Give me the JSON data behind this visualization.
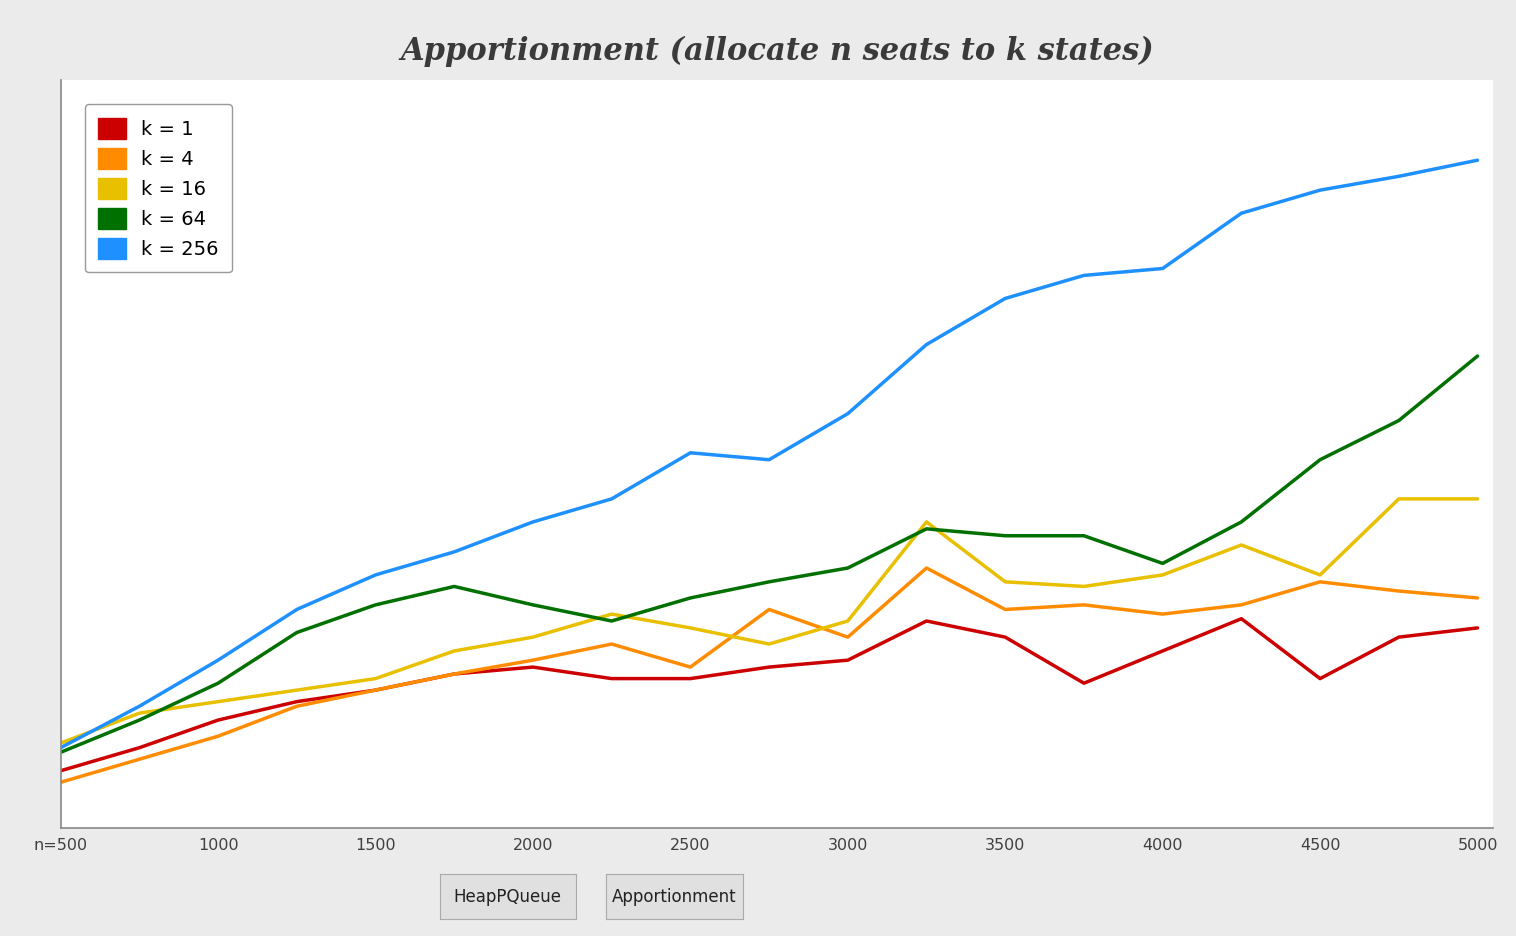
{
  "title": "Apportionment (allocate n seats to k states)",
  "x_values": [
    500,
    750,
    1000,
    1250,
    1500,
    1750,
    2000,
    2250,
    2500,
    2750,
    3000,
    3250,
    3500,
    3750,
    4000,
    4250,
    4500,
    4750,
    5000
  ],
  "series": {
    "k=1": {
      "color": "#cc0000",
      "label": "k = 1",
      "y": [
        10,
        20,
        32,
        40,
        45,
        52,
        55,
        50,
        50,
        55,
        58,
        75,
        68,
        48,
        62,
        76,
        50,
        68,
        72
      ]
    },
    "k=4": {
      "color": "#ff8c00",
      "label": "k = 4",
      "y": [
        5,
        15,
        25,
        38,
        45,
        52,
        58,
        65,
        55,
        80,
        68,
        98,
        80,
        82,
        78,
        82,
        92,
        88,
        85
      ]
    },
    "k=16": {
      "color": "#e8c000",
      "label": "k = 16",
      "y": [
        22,
        35,
        40,
        45,
        50,
        62,
        68,
        78,
        72,
        65,
        75,
        118,
        92,
        90,
        95,
        108,
        95,
        128,
        128
      ]
    },
    "k=64": {
      "color": "#007000",
      "label": "k = 64",
      "y": [
        18,
        32,
        48,
        70,
        82,
        90,
        82,
        75,
        85,
        92,
        98,
        115,
        112,
        112,
        100,
        118,
        145,
        162,
        190
      ]
    },
    "k=256": {
      "color": "#1e90ff",
      "label": "k = 256",
      "y": [
        20,
        38,
        58,
        80,
        95,
        105,
        118,
        128,
        148,
        145,
        165,
        195,
        215,
        225,
        228,
        252,
        262,
        268,
        275
      ]
    }
  },
  "tab_buttons": [
    "HeapPQueue",
    "Apportionment"
  ],
  "active_tab": "Apportionment",
  "background_color": "#ebebeb",
  "plot_bg": "#ffffff",
  "x_tick_labels": [
    "n=500",
    "1000",
    "1500",
    "2000",
    "2500",
    "3000",
    "3500",
    "4000",
    "4500",
    "5000"
  ],
  "x_tick_positions": [
    500,
    1000,
    1500,
    2000,
    2500,
    3000,
    3500,
    4000,
    4500,
    5000
  ],
  "xlim_left": 500,
  "xlim_right": 5050,
  "ylim_bottom": -15,
  "ylim_top": 310
}
